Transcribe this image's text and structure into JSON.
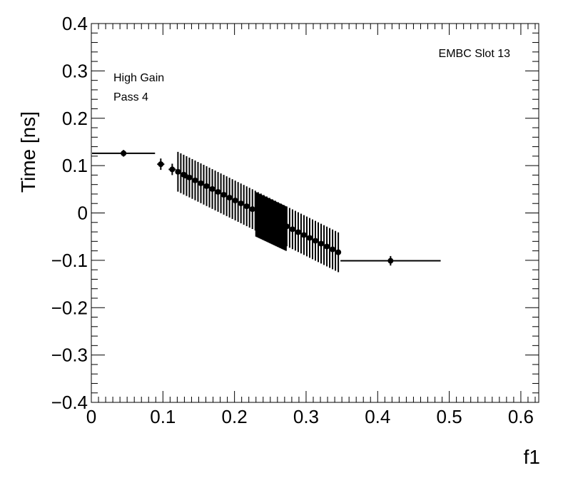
{
  "chart_data": {
    "type": "scatter",
    "title": "",
    "xlabel": "f1",
    "ylabel": "Time [ns]",
    "xlim": [
      0,
      0.625
    ],
    "ylim": [
      -0.4,
      0.4
    ],
    "grid": false,
    "legend": "none",
    "annotations": {
      "top_right": "EMBC Slot 13",
      "top_left_1": "High Gain",
      "top_left_2": "Pass 4"
    },
    "x_ticks": [
      0,
      0.1,
      0.2,
      0.3,
      0.4,
      0.5,
      0.6
    ],
    "x_tick_labels": [
      "0",
      "0.1",
      "0.2",
      "0.3",
      "0.4",
      "0.5",
      "0.6"
    ],
    "y_ticks": [
      -0.4,
      -0.3,
      -0.2,
      -0.1,
      0,
      0.1,
      0.2,
      0.3,
      0.4
    ],
    "y_tick_labels": [
      "−0.4",
      "−0.3",
      "−0.2",
      "−0.1",
      "0",
      "0.1",
      "0.2",
      "0.3",
      "0.4"
    ],
    "points": [
      {
        "x": 0.045,
        "y": 0.126,
        "xerr": 0.044,
        "yerr": 0.007
      },
      {
        "x": 0.097,
        "y": 0.103,
        "xerr": 0.005,
        "yerr": 0.012
      },
      {
        "x": 0.113,
        "y": 0.092,
        "xerr": 0.005,
        "yerr": 0.012
      }
    ],
    "line_segments": [
      {
        "x_start": 0.121,
        "x_end": 0.345,
        "y_start": 0.087,
        "y_end": -0.083,
        "step": 0.004,
        "yerr": 0.042,
        "marker_every": 2
      },
      {
        "x_start": 0.23,
        "x_end": 0.272,
        "y_start": -0.003,
        "y_end": -0.033,
        "step": 0.0015,
        "yerr": 0.047,
        "marker_every": 0
      }
    ],
    "tail_points": [
      {
        "x": 0.418,
        "y": -0.101,
        "xerr": 0.07,
        "yerr": 0.01
      }
    ],
    "extra_markers": [
      {
        "x": 0.345,
        "y": -0.083,
        "yerr": 0.0
      },
      {
        "x": 0.131,
        "y": 0.079,
        "yerr": 0.0
      }
    ]
  }
}
